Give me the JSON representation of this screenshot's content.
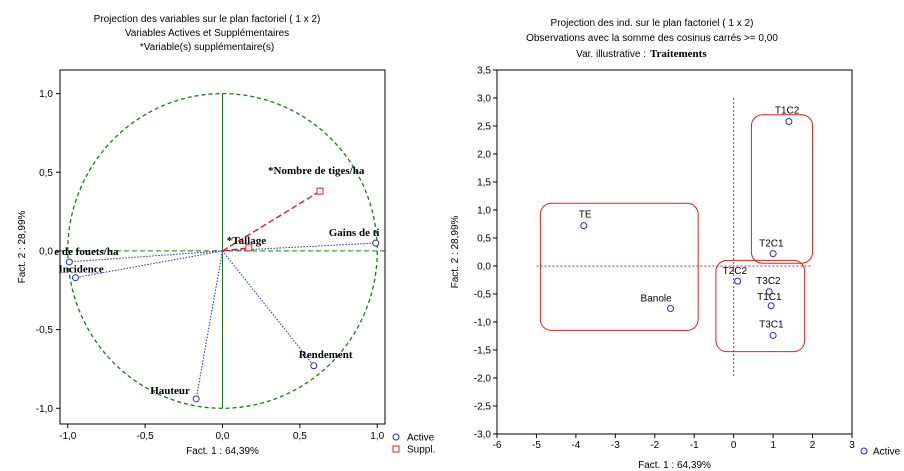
{
  "left": {
    "title_lines": [
      "Projection des variables sur le plan factoriel ( 1 x  2)",
      "Variables Actives et Supplémentaires",
      "*Variable(s) supplémentaire(s)"
    ],
    "legend": [
      {
        "label": "Active",
        "marker": "circle",
        "color": "#1f2ccf"
      },
      {
        "label": "Suppl.",
        "marker": "square",
        "color": "#e02020"
      }
    ]
  },
  "right": {
    "title_lines": [
      "Projection des ind. sur le plan factoriel (  1 x   2)",
      "Observations avec la somme des cosinus carrés >= 0,00"
    ],
    "illustrative_label": "Var. illustrative :",
    "illustrative_value": "Traitements",
    "legend": [
      {
        "label": "Active",
        "marker": "circle",
        "color": "#1f2ccf"
      }
    ]
  },
  "colors": {
    "active": "#1f2ccf",
    "supplementary": "#e02020",
    "circle": "#1a7a1a",
    "axis_left": "#1a7a1a",
    "group": "#e02020"
  },
  "chart_data": [
    {
      "type": "scatter",
      "subtype": "correlation-circle",
      "xlabel": "Fact. 1 : 64,39%",
      "ylabel": "Fact. 2 : 28,99%",
      "xlim": [
        -1.05,
        1.05
      ],
      "ylim": [
        -1.1,
        1.15
      ],
      "xticks": [
        "-1,0",
        "-0,5",
        "0,0",
        "0,5",
        "1,0"
      ],
      "xtick_values": [
        -1.0,
        -0.5,
        0.0,
        0.5,
        1.0
      ],
      "yticks": [
        "1,0",
        "0,5",
        "0,0",
        "-0,5",
        "-1,0"
      ],
      "ytick_values": [
        1.0,
        0.5,
        0.0,
        -0.5,
        -1.0
      ],
      "grid": false,
      "unit_circle": true,
      "points": [
        {
          "label": "e de fouets/ha",
          "x": -0.99,
          "y": -0.07,
          "kind": "active"
        },
        {
          "label": "Incidence",
          "x": -0.95,
          "y": -0.17,
          "kind": "active"
        },
        {
          "label": "Gains de ti",
          "x": 0.99,
          "y": 0.05,
          "kind": "active"
        },
        {
          "label": "Rendement",
          "x": 0.59,
          "y": -0.73,
          "kind": "active"
        },
        {
          "label": "Hauteur",
          "x": -0.17,
          "y": -0.94,
          "kind": "active"
        },
        {
          "label": "Nombre de tiges/ha",
          "x": 0.63,
          "y": 0.38,
          "kind": "suppl",
          "prefix": "*"
        },
        {
          "label": "Tallage",
          "x": 0.17,
          "y": 0.02,
          "kind": "suppl",
          "prefix": "*"
        }
      ]
    },
    {
      "type": "scatter",
      "xlabel": "Fact. 1 : 64,39%",
      "ylabel": "Fact. 2 : 28,99%",
      "xlim": [
        -6,
        3
      ],
      "ylim": [
        -3.0,
        3.5
      ],
      "xticks": [
        "-6",
        "-5",
        "-4",
        "-3",
        "-2",
        "-1",
        "0",
        "1",
        "2",
        "3"
      ],
      "xtick_values": [
        -6,
        -5,
        -4,
        -3,
        -2,
        -1,
        0,
        1,
        2,
        3
      ],
      "yticks": [
        "3,5",
        "3,0",
        "2,5",
        "2,0",
        "1,5",
        "1,0",
        "0,5",
        "0,0",
        "-0,5",
        "-1,0",
        "-1,5",
        "-2,0",
        "-2,5",
        "-3,0"
      ],
      "ytick_values": [
        3.5,
        3.0,
        2.5,
        2.0,
        1.5,
        1.0,
        0.5,
        0.0,
        -0.5,
        -1.0,
        -1.5,
        -2.0,
        -2.5,
        -3.0
      ],
      "grid": false,
      "points": [
        {
          "label": "T1C2",
          "x": 1.4,
          "y": 2.58
        },
        {
          "label": "TE",
          "x": -3.8,
          "y": 0.72
        },
        {
          "label": "T2C1",
          "x": 1.0,
          "y": 0.22
        },
        {
          "label": "T2C2",
          "x": 0.1,
          "y": -0.27
        },
        {
          "label": "T3C2",
          "x": 0.9,
          "y": -0.46
        },
        {
          "label": "T1C1",
          "x": 0.95,
          "y": -0.71
        },
        {
          "label": "Banole",
          "x": -1.6,
          "y": -0.76
        },
        {
          "label": "T3C1",
          "x": 1.0,
          "y": -1.24
        }
      ],
      "groups": [
        {
          "members": [
            "T1C2",
            "T2C1"
          ],
          "x_range": [
            0.45,
            2.0
          ],
          "y_range": [
            0.05,
            2.7
          ]
        },
        {
          "members": [
            "TE",
            "Banole"
          ],
          "x_range": [
            -4.9,
            -0.9
          ],
          "y_range": [
            -1.15,
            1.12
          ]
        },
        {
          "members": [
            "T2C2",
            "T3C2",
            "T1C1",
            "T3C1"
          ],
          "x_range": [
            -0.45,
            1.8
          ],
          "y_range": [
            -1.53,
            0.1
          ]
        }
      ]
    }
  ]
}
